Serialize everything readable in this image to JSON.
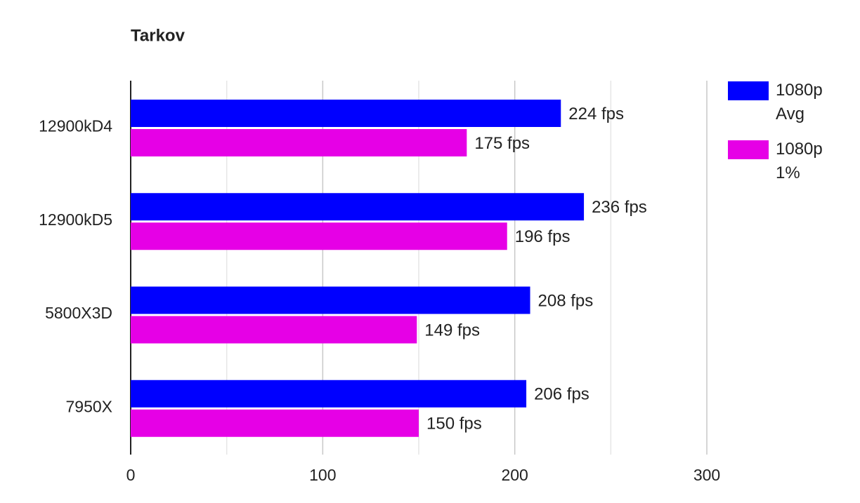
{
  "chart_data": {
    "type": "hbar",
    "title": "Tarkov",
    "categories": [
      "12900kD4",
      "12900kD5",
      "5800X3D",
      "7950X"
    ],
    "series": [
      {
        "name": "1080p Avg",
        "color": "#0000ff",
        "values": [
          224,
          236,
          208,
          206
        ],
        "value_labels": [
          "224 fps",
          "236 fps",
          "208 fps",
          "206 fps"
        ]
      },
      {
        "name": "1080p 1%",
        "color": "#e600e6",
        "values": [
          175,
          196,
          149,
          150
        ],
        "value_labels": [
          "175 fps",
          "196 fps",
          "149 fps",
          "150 fps"
        ]
      }
    ],
    "xlim": [
      0,
      300
    ],
    "xticks": [
      0,
      100,
      200,
      300
    ],
    "minor_gridlines": [
      50,
      150,
      250
    ],
    "grid": true,
    "legend": "right"
  }
}
